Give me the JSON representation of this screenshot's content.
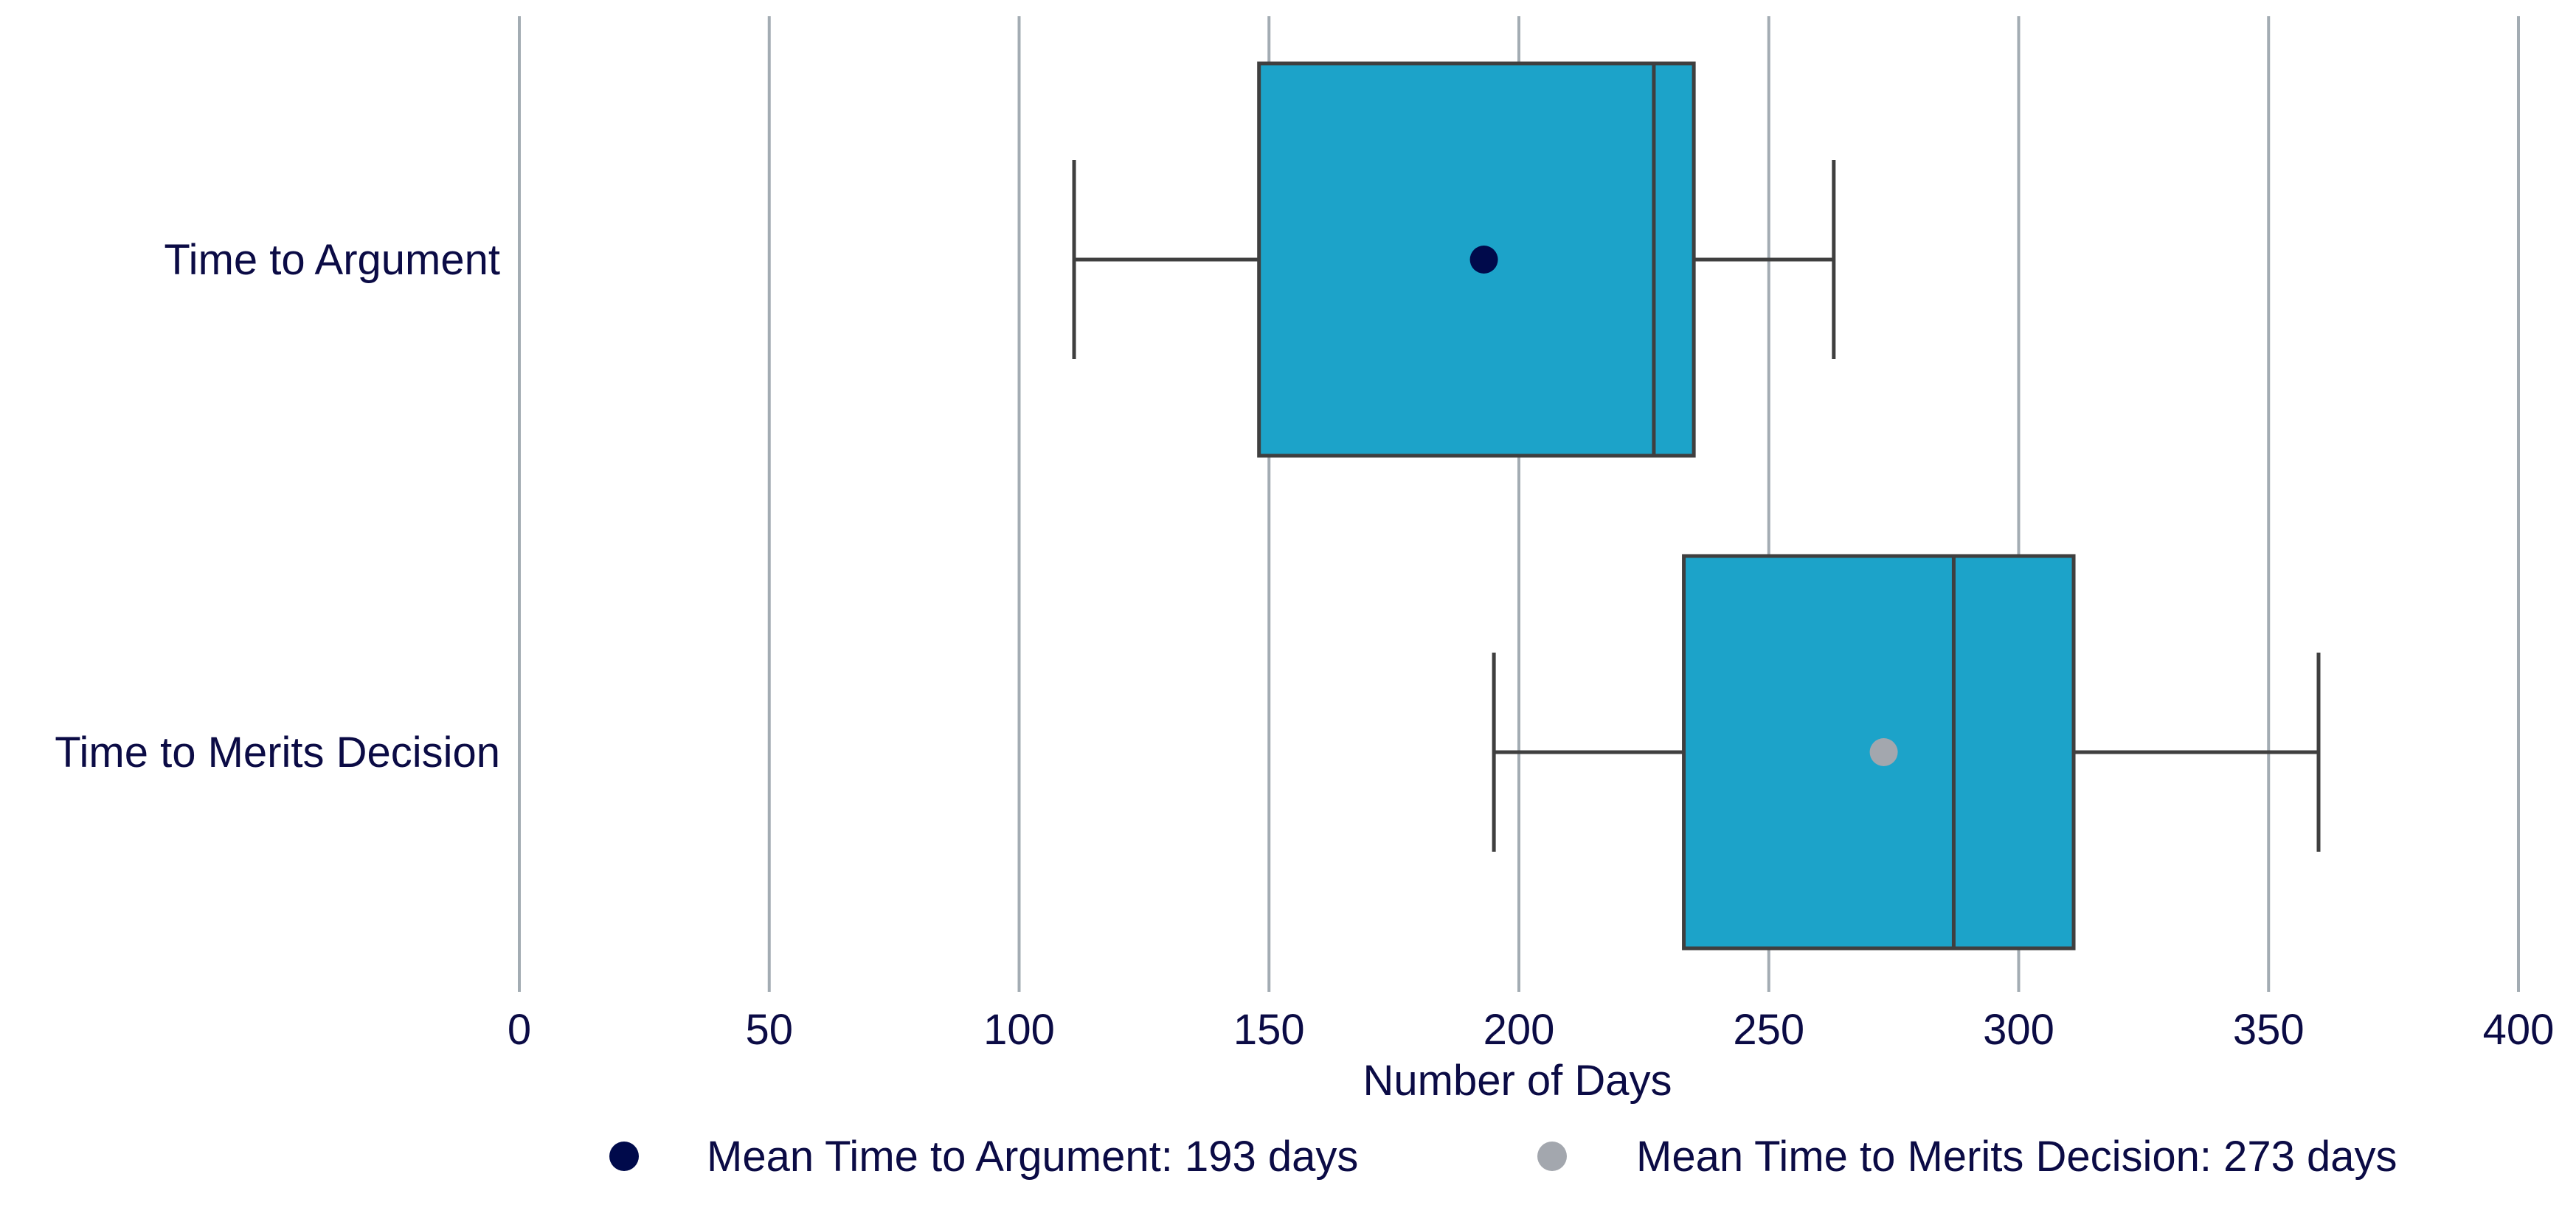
{
  "chart_data": {
    "type": "boxplot",
    "orientation": "horizontal",
    "title": "",
    "xlabel": "Number of Days",
    "ylabel": "",
    "xlim": [
      0,
      400
    ],
    "xticks": [
      0,
      50,
      100,
      150,
      200,
      250,
      300,
      350,
      400
    ],
    "grid": "vertical",
    "legend_position": "bottom",
    "box_color": "#1ca3c9",
    "line_color": "#3f3f3f",
    "grid_color": "#a3acb3",
    "text_color": "#0b0b45",
    "categories": [
      "Time to Argument",
      "Time to Merits Decision"
    ],
    "boxes": [
      {
        "category": "Time to Argument",
        "whisker_low": 111,
        "q1": 148,
        "median": 227,
        "q3": 235,
        "whisker_high": 263,
        "mean": 193,
        "mean_color": "#000a4b"
      },
      {
        "category": "Time to Merits Decision",
        "whisker_low": 195,
        "q1": 233,
        "median": 287,
        "q3": 311,
        "whisker_high": 360,
        "mean": 273,
        "mean_color": "#a3a7ae"
      }
    ],
    "legend": [
      {
        "label": "Mean Time to Argument: 193 days",
        "color": "#000a4b"
      },
      {
        "label": "Mean Time to Merits Decision: 273 days",
        "color": "#a3a7ae"
      }
    ]
  }
}
